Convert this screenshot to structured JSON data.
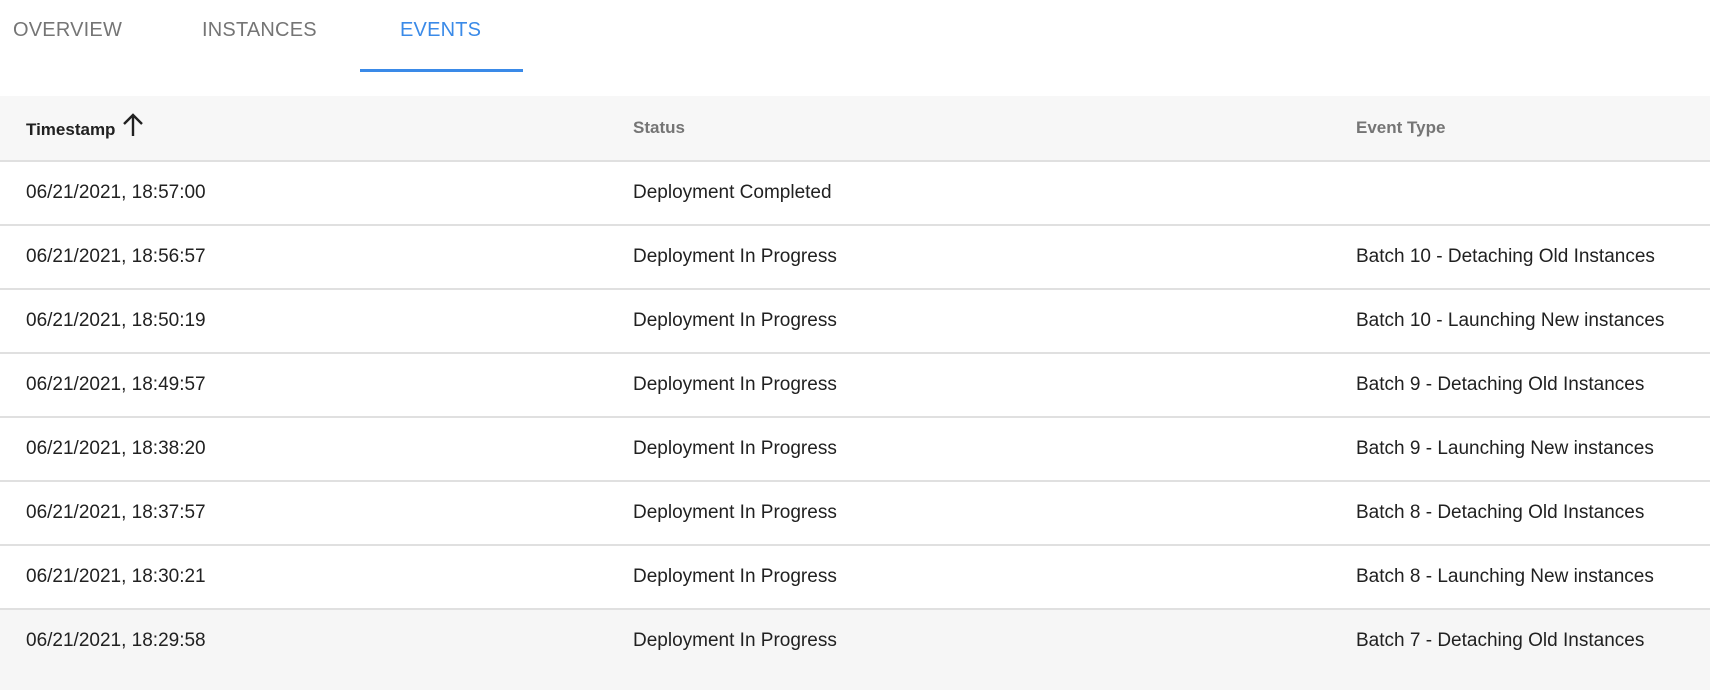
{
  "tabs": [
    {
      "label": "OVERVIEW"
    },
    {
      "label": "INSTANCES"
    },
    {
      "label": "EVENTS",
      "active": true
    }
  ],
  "accent_color": "#3a8ae8",
  "table": {
    "columns": [
      {
        "label": "Timestamp",
        "sort": "ascending",
        "sort_icon": "arrow-up-icon"
      },
      {
        "label": "Status"
      },
      {
        "label": "Event Type"
      }
    ],
    "rows": [
      {
        "timestamp": "06/21/2021, 18:57:00",
        "status": "Deployment Completed",
        "event_type": ""
      },
      {
        "timestamp": "06/21/2021, 18:56:57",
        "status": "Deployment In Progress",
        "event_type": "Batch 10 - Detaching Old Instances"
      },
      {
        "timestamp": "06/21/2021, 18:50:19",
        "status": "Deployment In Progress",
        "event_type": "Batch 10 - Launching New instances"
      },
      {
        "timestamp": "06/21/2021, 18:49:57",
        "status": "Deployment In Progress",
        "event_type": "Batch 9 - Detaching Old Instances"
      },
      {
        "timestamp": "06/21/2021, 18:38:20",
        "status": "Deployment In Progress",
        "event_type": "Batch 9 - Launching New instances"
      },
      {
        "timestamp": "06/21/2021, 18:37:57",
        "status": "Deployment In Progress",
        "event_type": "Batch 8 - Detaching Old Instances"
      },
      {
        "timestamp": "06/21/2021, 18:30:21",
        "status": "Deployment In Progress",
        "event_type": "Batch 8 - Launching New instances"
      },
      {
        "timestamp": "06/21/2021, 18:29:58",
        "status": "Deployment In Progress",
        "event_type": "Batch 7 - Detaching Old Instances"
      }
    ]
  }
}
